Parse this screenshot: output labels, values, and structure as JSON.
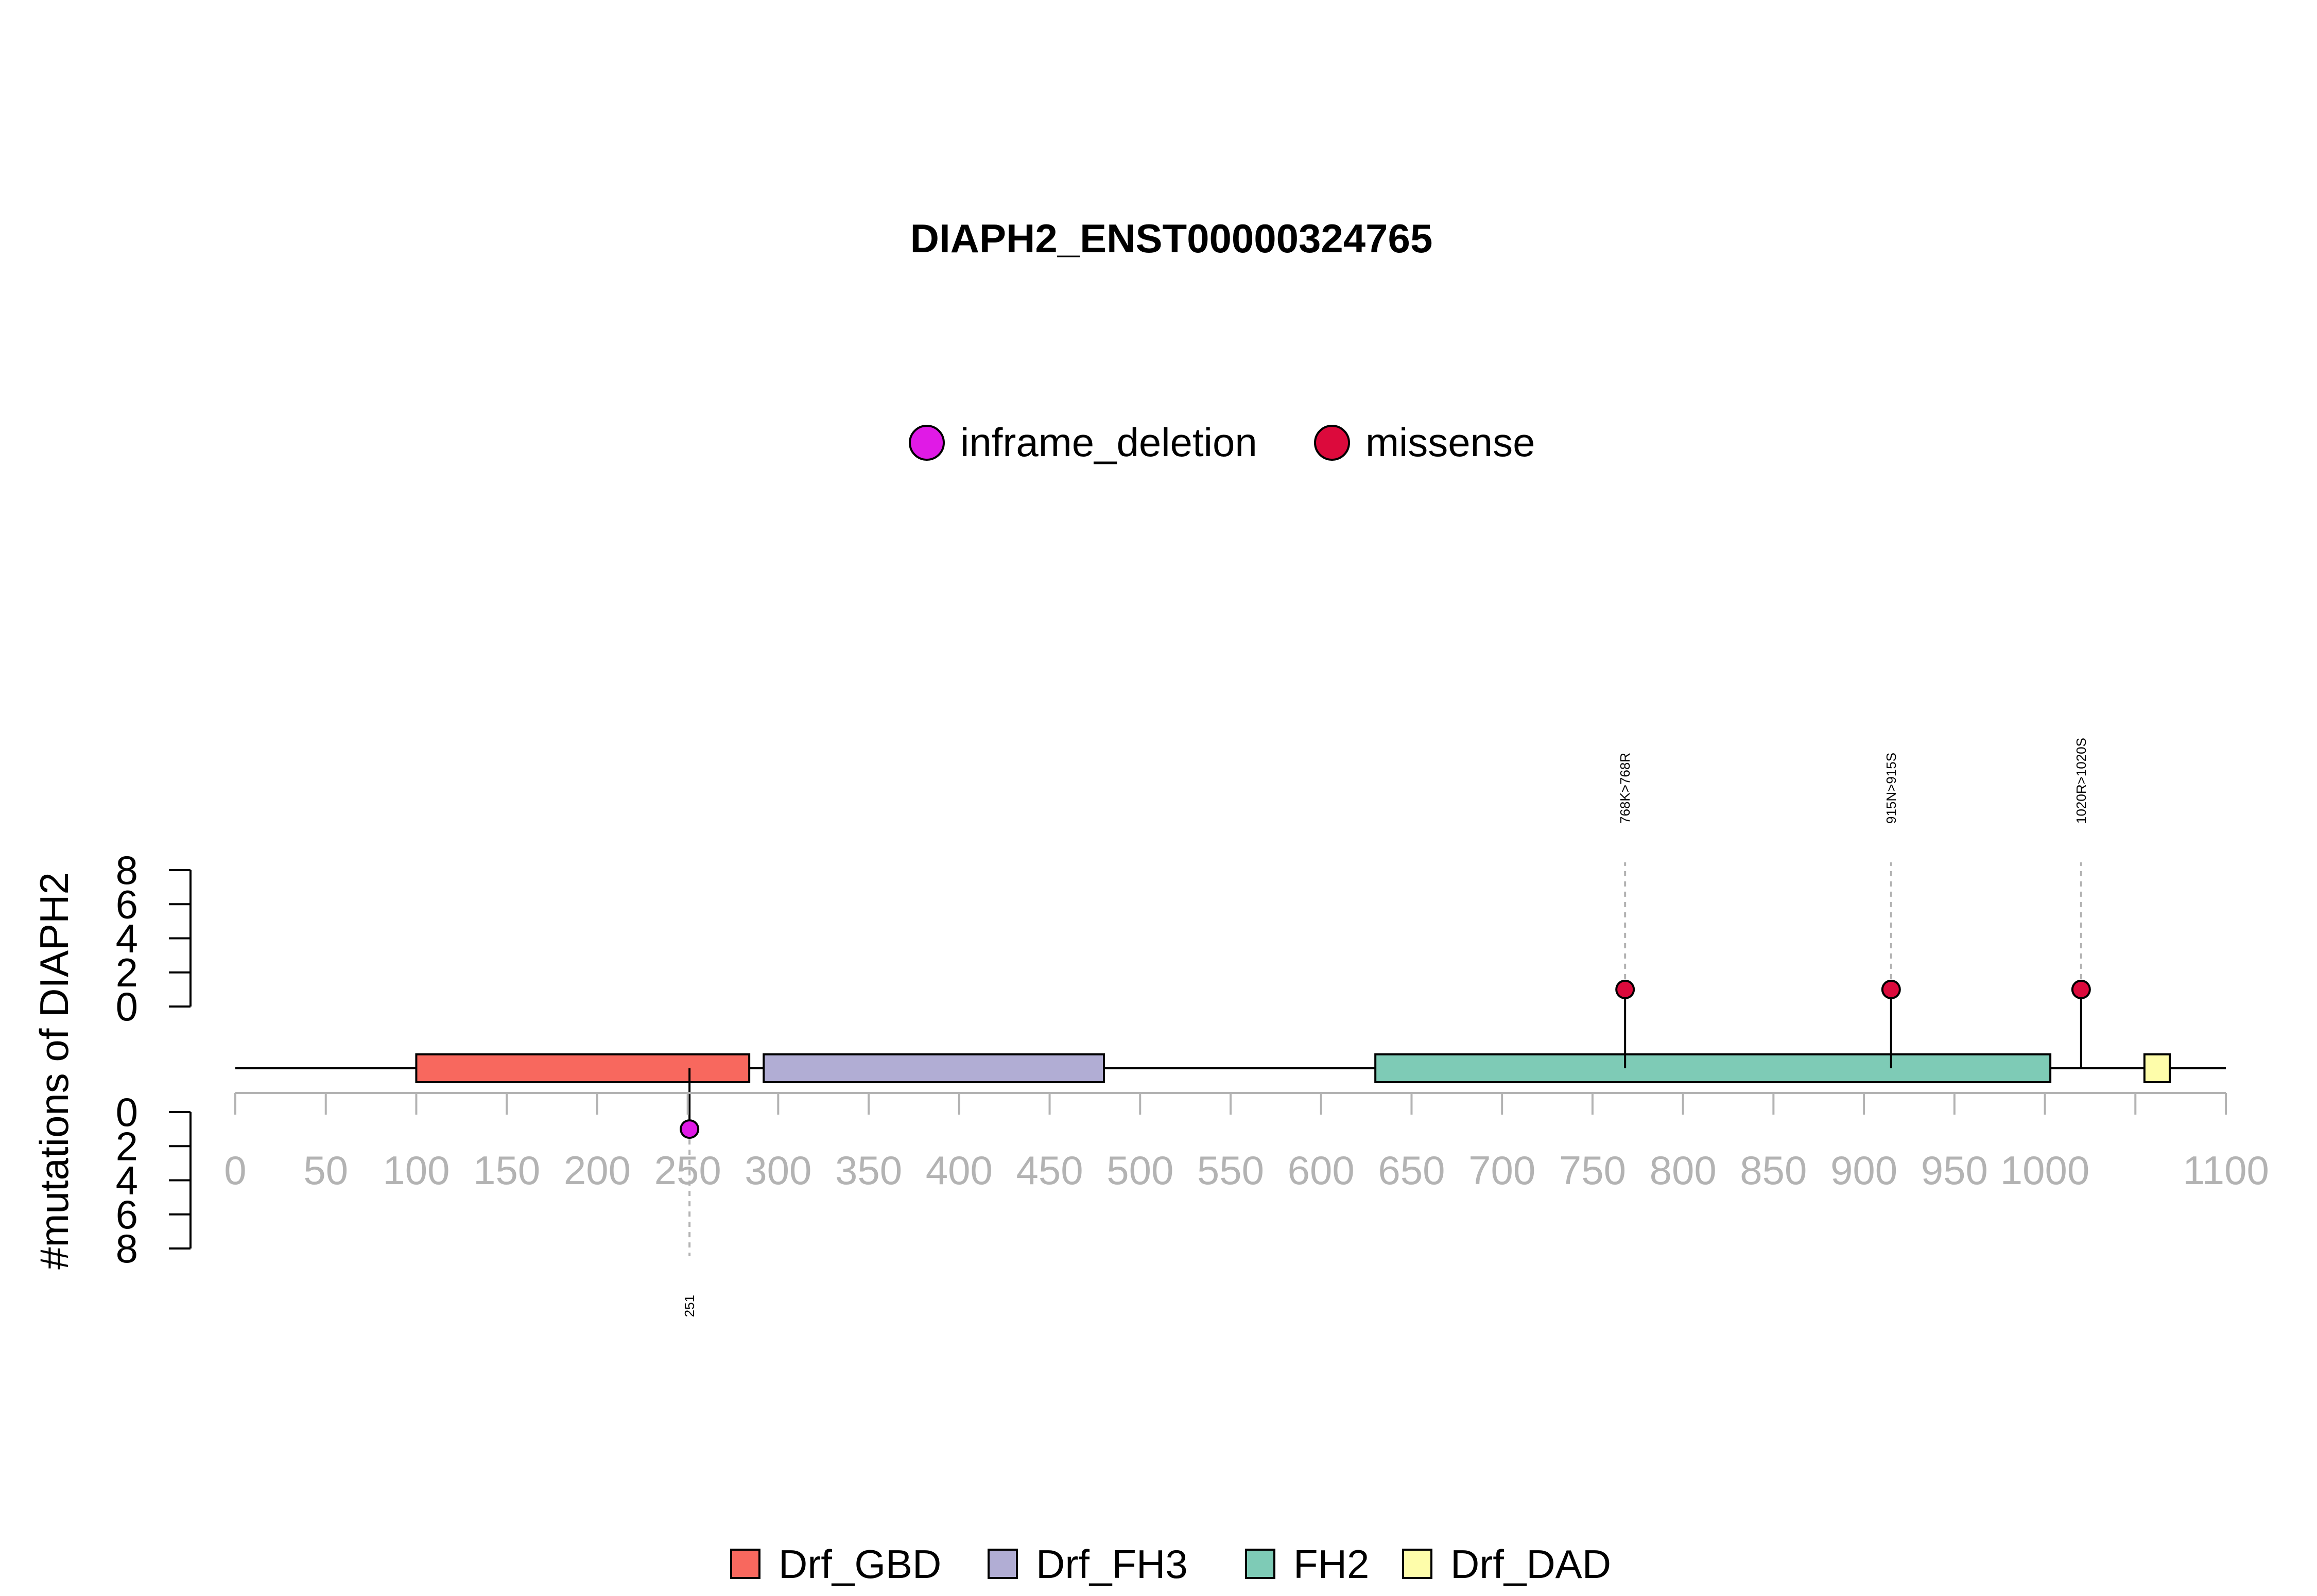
{
  "chart_data": {
    "type": "lollipop",
    "title": "DIAPH2_ENST00000324765",
    "ylabel": "#mutations of DIAPH2",
    "xlim": [
      0,
      1100
    ],
    "x_ticks": [
      "0",
      "50",
      "100",
      "150",
      "200",
      "250",
      "300",
      "350",
      "400",
      "450",
      "500",
      "550",
      "600",
      "650",
      "700",
      "750",
      "800",
      "850",
      "900",
      "950",
      "1000",
      "1100"
    ],
    "x_tick_values": [
      0,
      50,
      100,
      150,
      200,
      250,
      300,
      350,
      400,
      450,
      500,
      550,
      600,
      650,
      700,
      750,
      800,
      850,
      900,
      950,
      1000,
      1100
    ],
    "minor_tick_values": [
      1050
    ],
    "y_ticks_top": [
      "0",
      "2",
      "4",
      "6",
      "8"
    ],
    "y_ticks_bottom": [
      "0",
      "2",
      "4",
      "6",
      "8"
    ],
    "y_tick_values": [
      0,
      2,
      4,
      6,
      8
    ],
    "ylim": [
      0,
      8
    ],
    "mutation_legend": [
      {
        "name": "inframe_deletion",
        "color": "#e01ae6"
      },
      {
        "name": "missense",
        "color": "#dc0a3c"
      }
    ],
    "domains": [
      {
        "name": "Drf_GBD",
        "start": 100,
        "end": 284,
        "color": "#f8685e"
      },
      {
        "name": "Drf_FH3",
        "start": 292,
        "end": 480,
        "color": "#b1add4"
      },
      {
        "name": "FH2",
        "start": 630,
        "end": 1003,
        "color": "#7ecbb6"
      },
      {
        "name": "Drf_DAD",
        "start": 1055,
        "end": 1069,
        "color": "#fefdaa"
      }
    ],
    "mutations": [
      {
        "position": 251,
        "count": 1,
        "type": "inframe_deletion",
        "side": "bottom",
        "label": "251"
      },
      {
        "position": 768,
        "count": 1,
        "type": "missense",
        "side": "top",
        "label": "768K>768R"
      },
      {
        "position": 915,
        "count": 1,
        "type": "missense",
        "side": "top",
        "label": "915N>915S"
      },
      {
        "position": 1020,
        "count": 1,
        "type": "missense",
        "side": "top",
        "label": "1020R>1020S"
      }
    ]
  }
}
